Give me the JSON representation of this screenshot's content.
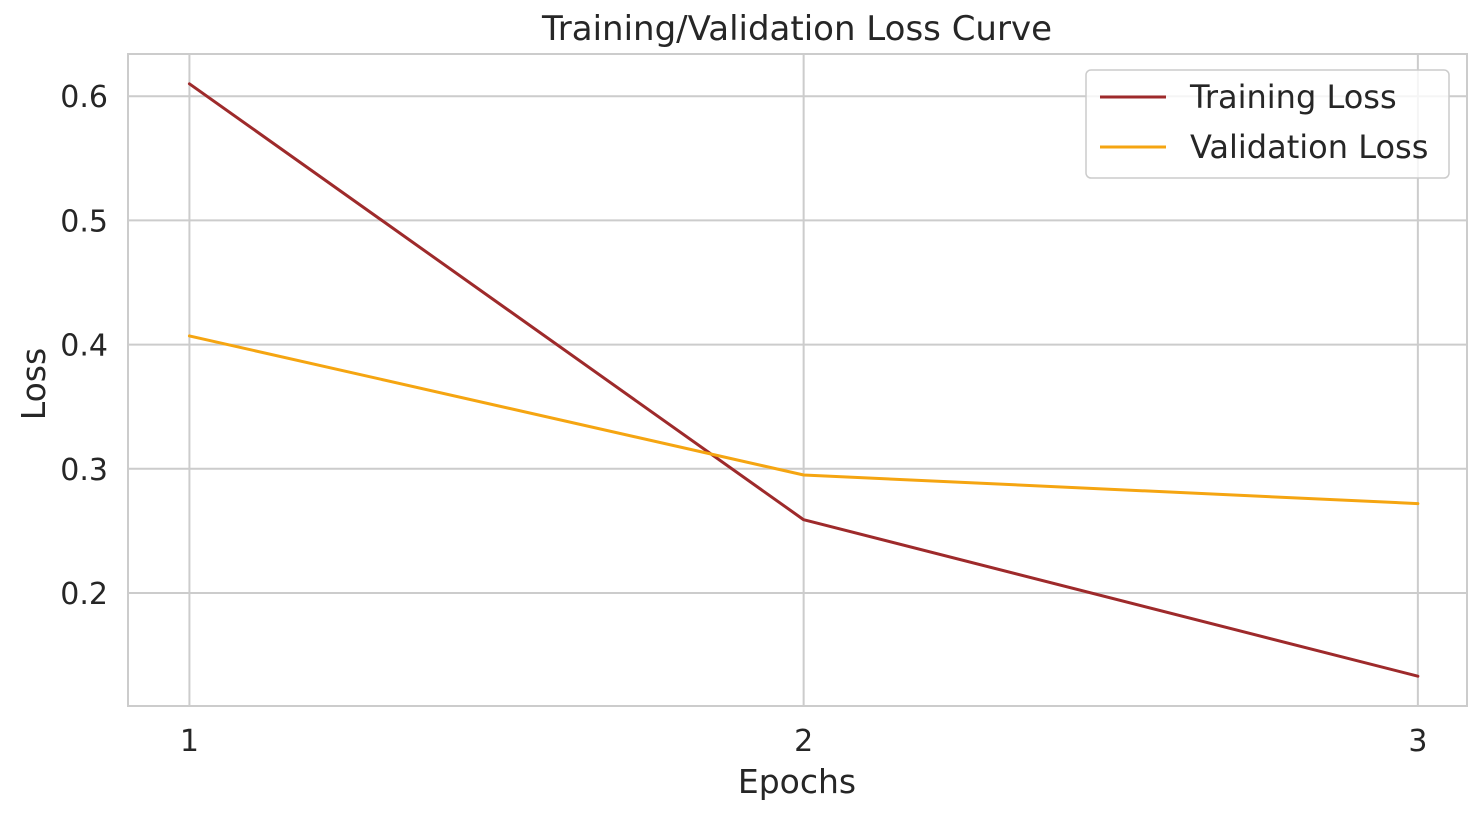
{
  "chart_data": {
    "type": "line",
    "title": "Training/Validation Loss Curve",
    "xlabel": "Epochs",
    "ylabel": "Loss",
    "x": [
      1,
      2,
      3
    ],
    "x_ticks": [
      "1",
      "2",
      "3"
    ],
    "y_ticks": [
      "0.2",
      "0.3",
      "0.4",
      "0.5",
      "0.6"
    ],
    "xlim": [
      0.9,
      3.08
    ],
    "ylim": [
      0.109,
      0.634
    ],
    "grid": true,
    "legend_position": "top-right",
    "series": [
      {
        "name": "Training Loss",
        "values": [
          0.61,
          0.259,
          0.133
        ],
        "color": "#9e2a2b"
      },
      {
        "name": "Validation Loss",
        "values": [
          0.407,
          0.295,
          0.272
        ],
        "color": "#f5a511"
      }
    ],
    "colors": {
      "grid": "#cccccc",
      "frame": "#cccccc",
      "text": "#262626"
    }
  }
}
